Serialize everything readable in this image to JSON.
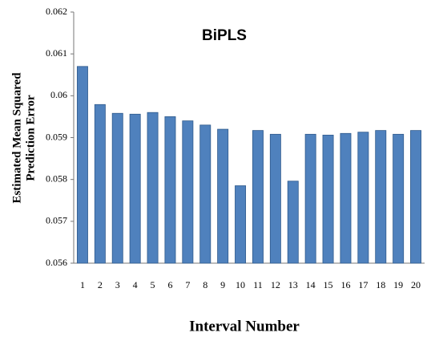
{
  "chart_data": {
    "type": "bar",
    "title": "BiPLS",
    "xlabel": "Interval Number",
    "ylabel": [
      "Estimated Mean Squared",
      "Prediction Error"
    ],
    "categories": [
      "1",
      "2",
      "3",
      "4",
      "5",
      "6",
      "7",
      "8",
      "9",
      "10",
      "11",
      "12",
      "13",
      "14",
      "15",
      "16",
      "17",
      "18",
      "19",
      "20"
    ],
    "values": [
      0.0607,
      0.05979,
      0.05958,
      0.05956,
      0.0596,
      0.0595,
      0.0594,
      0.0593,
      0.0592,
      0.05785,
      0.05917,
      0.05908,
      0.05796,
      0.05908,
      0.05906,
      0.0591,
      0.05913,
      0.05917,
      0.05908,
      0.05917
    ],
    "color": "#4f81bd",
    "ylim": [
      0.056,
      0.062
    ],
    "yticks": [
      0.056,
      0.057,
      0.058,
      0.059,
      0.06,
      0.061,
      0.062
    ]
  }
}
